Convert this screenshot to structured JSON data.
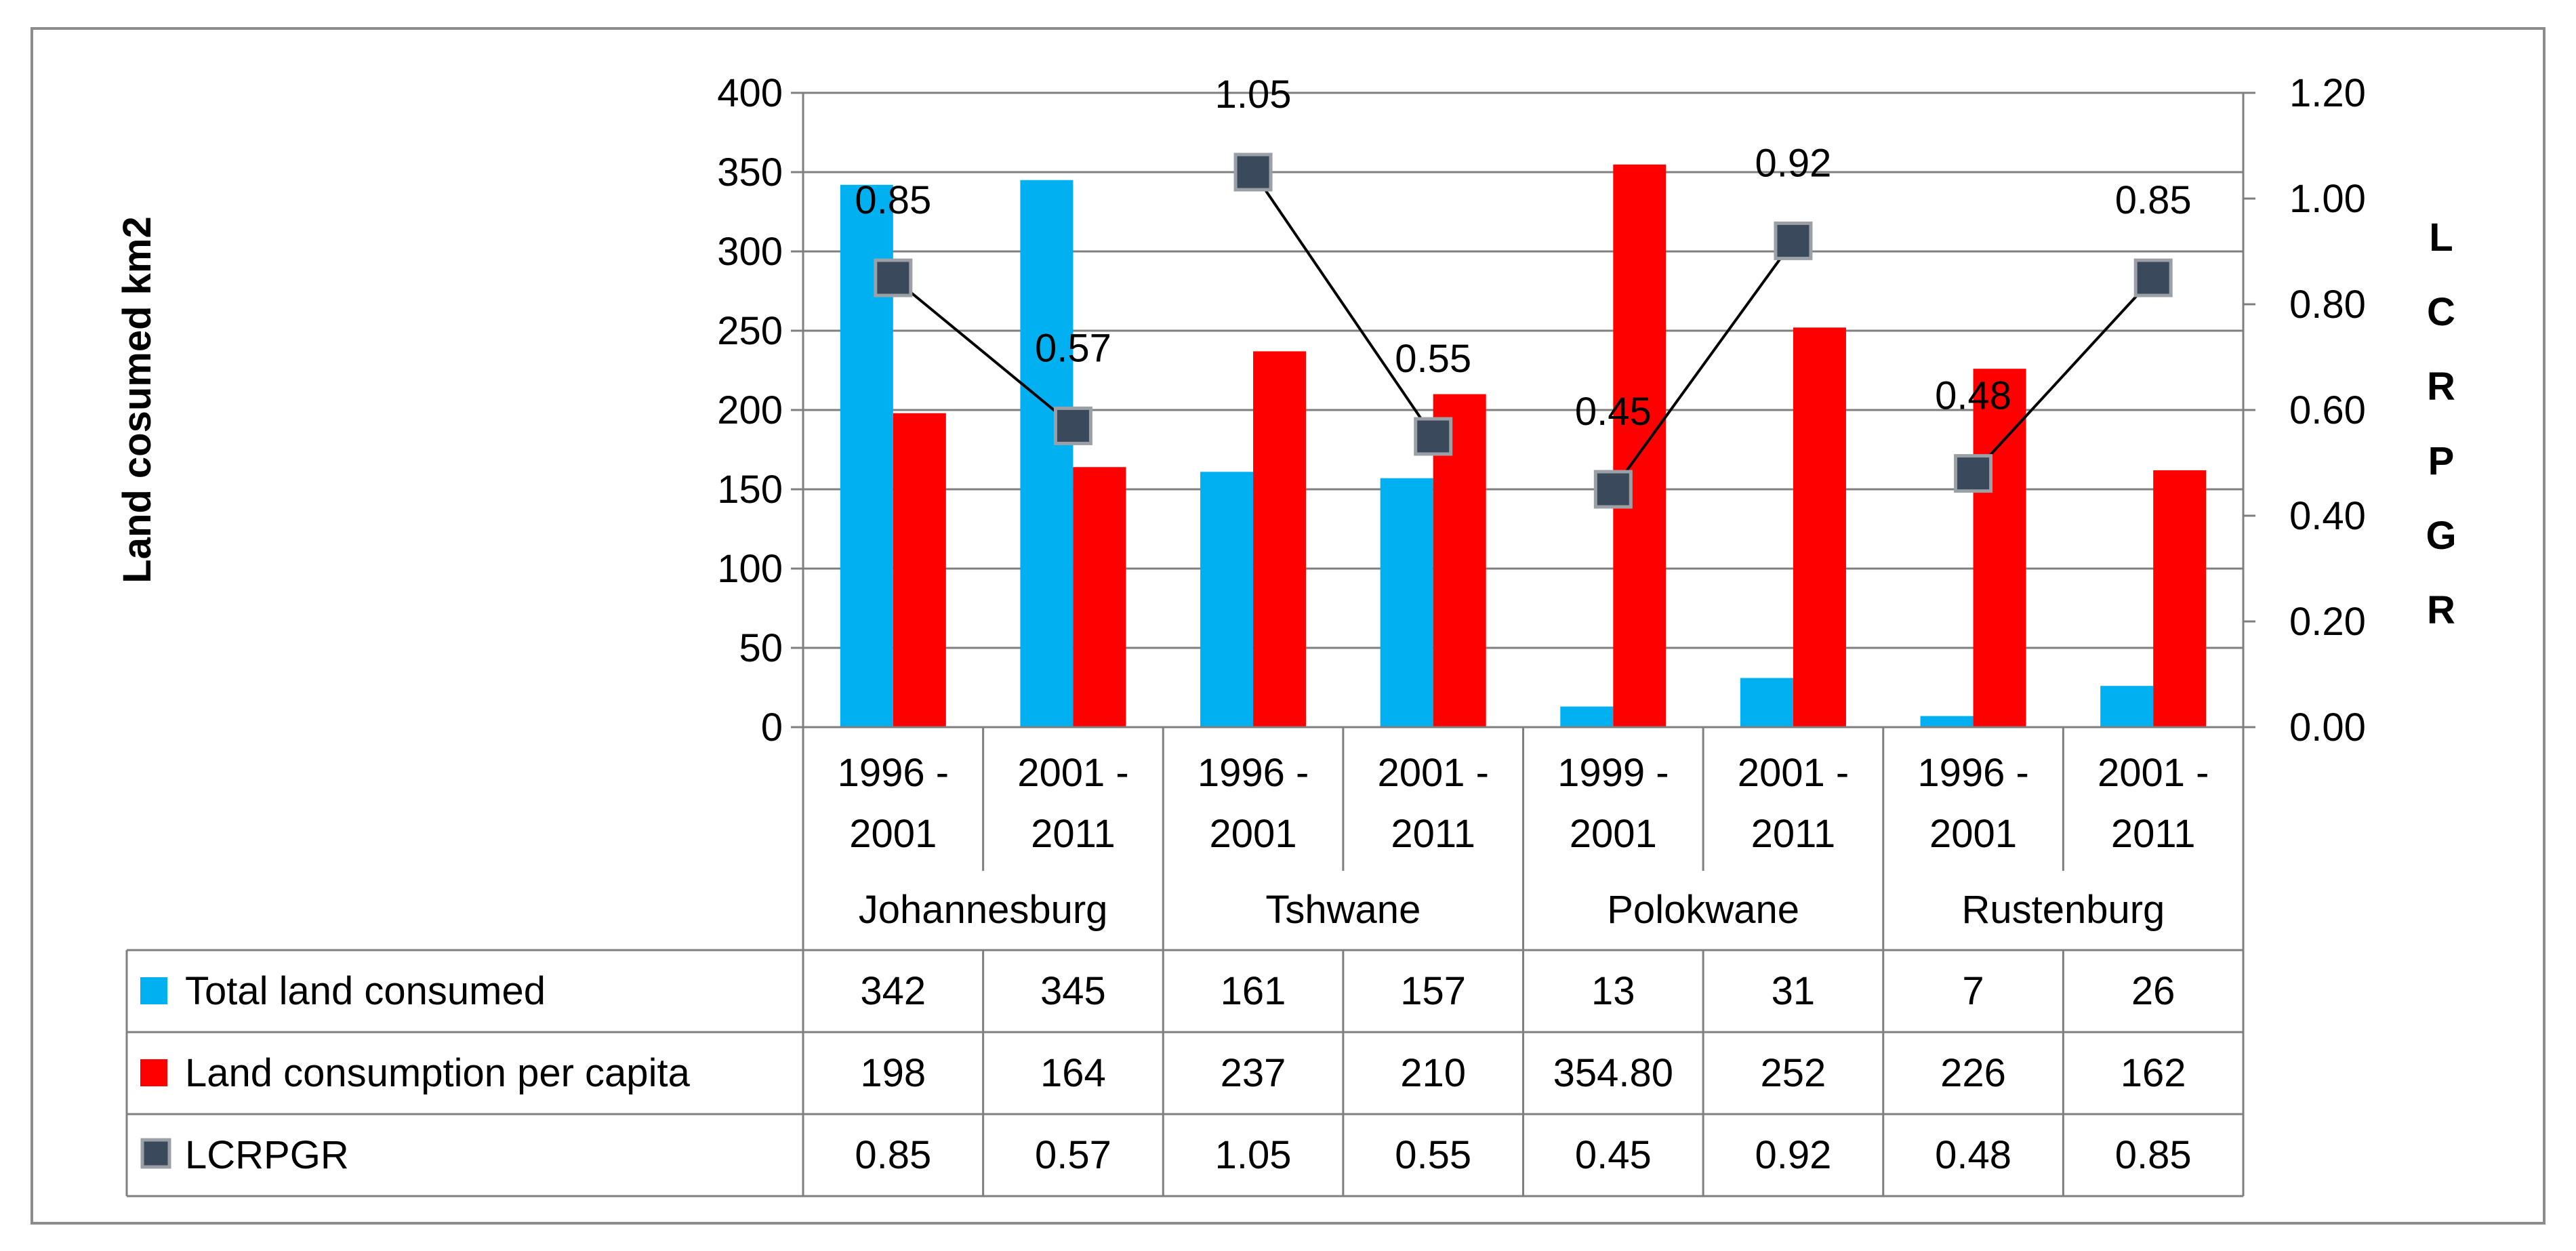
{
  "chart_data": {
    "type": "bar",
    "title": "",
    "ylabel": "Land cosumed km2",
    "y2label": "LCRPGR",
    "ylim": [
      0,
      400
    ],
    "y_ticks": [
      0,
      50,
      100,
      150,
      200,
      250,
      300,
      350,
      400
    ],
    "y_tick_labels": [
      "0",
      "50",
      "100",
      "150",
      "200",
      "250",
      "300",
      "350",
      "400"
    ],
    "y2lim": [
      0,
      1.2
    ],
    "y2_ticks": [
      0,
      0.2,
      0.4,
      0.6,
      0.8,
      1.0,
      1.2
    ],
    "y2_tick_labels": [
      "0.00",
      "0.20",
      "0.40",
      "0.60",
      "0.80",
      "1.00",
      "1.20"
    ],
    "grid": true,
    "categories": [
      {
        "period": [
          "1996 -",
          "2001"
        ],
        "group": "Johannesburg"
      },
      {
        "period": [
          "2001 -",
          "2011"
        ],
        "group": "Johannesburg"
      },
      {
        "period": [
          "1996 -",
          "2001"
        ],
        "group": "Tshwane"
      },
      {
        "period": [
          "2001 -",
          "2011"
        ],
        "group": "Tshwane"
      },
      {
        "period": [
          "1999 -",
          "2001"
        ],
        "group": "Polokwane"
      },
      {
        "period": [
          "2001 -",
          "2011"
        ],
        "group": "Polokwane"
      },
      {
        "period": [
          "1996 -",
          "2001"
        ],
        "group": "Rustenburg"
      },
      {
        "period": [
          "2001 -",
          "2011"
        ],
        "group": "Rustenburg"
      }
    ],
    "groups": [
      "Johannesburg",
      "Tshwane",
      "Polokwane",
      "Rustenburg"
    ],
    "series": [
      {
        "name": "Total land consumed",
        "type": "bar",
        "axis": "left",
        "color": "#00b0f0",
        "values": [
          342,
          345,
          161,
          157,
          13,
          31,
          7,
          26
        ],
        "table_values": [
          "342",
          "345",
          "161",
          "157",
          "13",
          "31",
          "7",
          "26"
        ]
      },
      {
        "name": "Land consumption per capita",
        "type": "bar",
        "axis": "left",
        "color": "#ff0000",
        "values": [
          198,
          164,
          237,
          210,
          354.8,
          252,
          226,
          162
        ],
        "table_values": [
          "198",
          "164",
          "237",
          "210",
          "354.80",
          "252",
          "226",
          "162"
        ]
      },
      {
        "name": "LCRPGR",
        "type": "line-markers",
        "axis": "right",
        "color": "#3a4a5c",
        "values": [
          0.85,
          0.57,
          1.05,
          0.55,
          0.45,
          0.92,
          0.48,
          0.85
        ],
        "table_values": [
          "0.85",
          "0.57",
          "1.05",
          "0.55",
          "0.45",
          "0.92",
          "0.48",
          "0.85"
        ],
        "data_labels": [
          "0.85",
          "0.57",
          "1.05",
          "0.55",
          "0.45",
          "0.92",
          "0.48",
          "0.85"
        ],
        "connect_pairs": true
      }
    ]
  }
}
